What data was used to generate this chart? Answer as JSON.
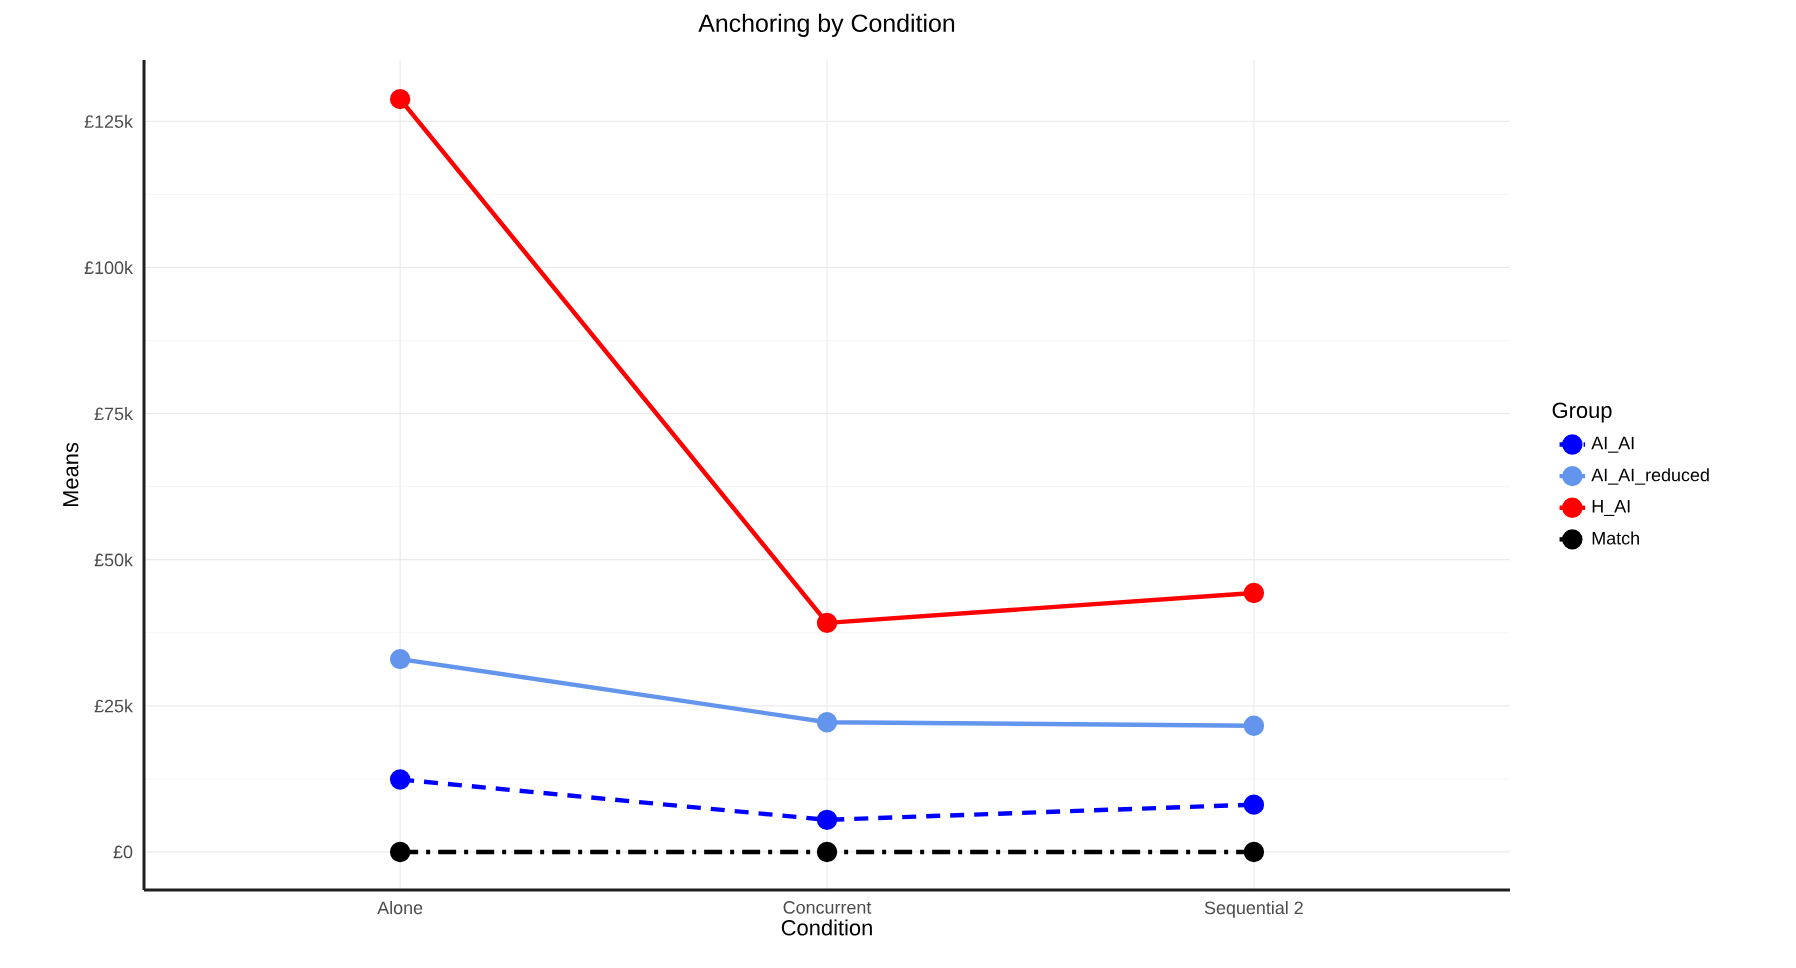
{
  "chart_data": {
    "type": "line",
    "title": "Anchoring by Condition",
    "xlabel": "Condition",
    "ylabel": "Means",
    "legend_title": "Group",
    "categories": [
      "Alone",
      "Concurrent",
      "Sequential 2"
    ],
    "series": [
      {
        "name": "AI_AI",
        "color": "#0000ff",
        "values": [
          12400,
          5500,
          8100
        ],
        "line_style": "dashed"
      },
      {
        "name": "AI_AI_reduced",
        "color": "#6495ed",
        "values": [
          33000,
          22200,
          21600
        ],
        "line_style": "solid"
      },
      {
        "name": "H_AI",
        "color": "#ff0000",
        "values": [
          128800,
          39200,
          44300
        ],
        "line_style": "solid"
      },
      {
        "name": "Match",
        "color": "#000000",
        "values": [
          0,
          0,
          0
        ],
        "line_style": "dashdot"
      }
    ],
    "ylim": [
      -6500,
      135500
    ],
    "yticks": [
      {
        "value": 0,
        "label": "£0"
      },
      {
        "value": 25000,
        "label": "£25k"
      },
      {
        "value": 50000,
        "label": "£50k"
      },
      {
        "value": 75000,
        "label": "£75k"
      },
      {
        "value": 100000,
        "label": "£100k"
      },
      {
        "value": 125000,
        "label": "£125k"
      }
    ],
    "grid": true,
    "legend": "right",
    "marker": "circle"
  }
}
